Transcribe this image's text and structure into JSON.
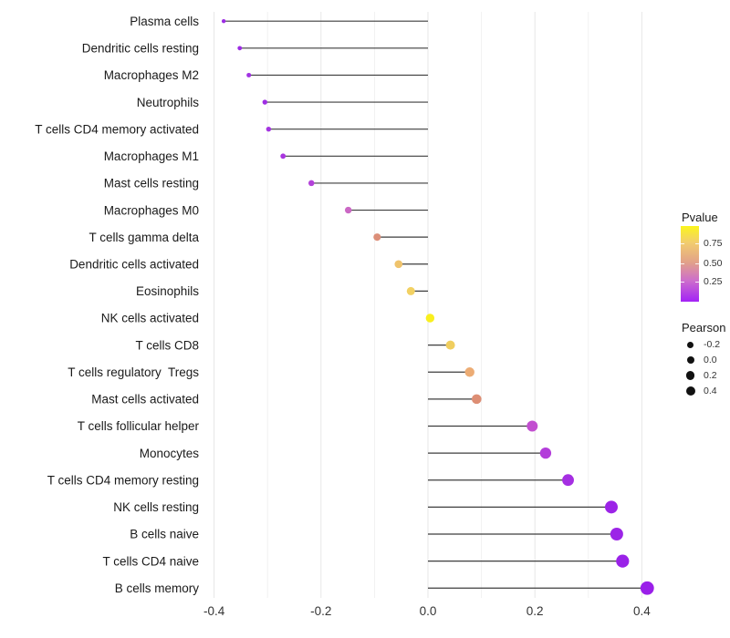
{
  "figure": {
    "background": "#FFFFFF",
    "text_color": "#1a1a1a",
    "axis_text_color": "#333333",
    "stem_color": "#3d3d3d",
    "major_grid_color": "#e7e7e7",
    "minor_grid_color": "#f1f1f1"
  },
  "chart_data": {
    "type": "lollipop",
    "orientation": "horizontal",
    "title": "",
    "xlabel": "",
    "ylabel": "",
    "xlim": [
      -0.41,
      0.46
    ],
    "baseline_x": 0,
    "grid": "vertical-only",
    "x_ticks": [
      -0.4,
      -0.2,
      0,
      0.2,
      0.4
    ],
    "x_tick_labels": [
      "-0.4",
      "-0.2",
      "0.0",
      "0.2",
      "0.4"
    ],
    "x_minor_ticks": [
      -0.3,
      -0.1,
      0.1,
      0.3
    ],
    "legend_position": "right",
    "rows": [
      {
        "label": "Plasma cells",
        "pearson": -0.382,
        "color": "#9C2BE4"
      },
      {
        "label": "Dendritic cells resting",
        "pearson": -0.352,
        "color": "#9C2BE4"
      },
      {
        "label": "Macrophages M2",
        "pearson": -0.335,
        "color": "#A131E3"
      },
      {
        "label": "Neutrophils",
        "pearson": -0.305,
        "color": "#9E2DE3"
      },
      {
        "label": "T cells CD4 memory activated",
        "pearson": -0.298,
        "color": "#A434E1"
      },
      {
        "label": "Macrophages M1",
        "pearson": -0.271,
        "color": "#A936DF"
      },
      {
        "label": "Mast cells resting",
        "pearson": -0.218,
        "color": "#B341D9"
      },
      {
        "label": "Macrophages M0",
        "pearson": -0.149,
        "color": "#CB68C5"
      },
      {
        "label": "T cells gamma delta",
        "pearson": -0.095,
        "color": "#DC8F79"
      },
      {
        "label": "Dendritic cells activated",
        "pearson": -0.055,
        "color": "#EFC36C"
      },
      {
        "label": "Eosinophils",
        "pearson": -0.032,
        "color": "#F2D163"
      },
      {
        "label": "NK cells activated",
        "pearson": 0.004,
        "color": "#F9EF1E"
      },
      {
        "label": "T cells CD8",
        "pearson": 0.042,
        "color": "#F0CE5F"
      },
      {
        "label": "T cells regulatory  Tregs",
        "pearson": 0.078,
        "color": "#ECAC74"
      },
      {
        "label": "Mast cells activated",
        "pearson": 0.091,
        "color": "#DD8E74"
      },
      {
        "label": "T cells follicular helper",
        "pearson": 0.195,
        "color": "#C24FD0"
      },
      {
        "label": "Monocytes",
        "pearson": 0.22,
        "color": "#B33DDA"
      },
      {
        "label": "T cells CD4 memory resting",
        "pearson": 0.262,
        "color": "#A52FE2"
      },
      {
        "label": "NK cells resting",
        "pearson": 0.343,
        "color": "#9C24E7"
      },
      {
        "label": "B cells naive",
        "pearson": 0.353,
        "color": "#9C24E7"
      },
      {
        "label": "T cells CD4 naive",
        "pearson": 0.364,
        "color": "#9A22E8"
      },
      {
        "label": "B cells memory",
        "pearson": 0.41,
        "color": "#9A1FE9"
      }
    ]
  },
  "legend": {
    "pvalue": {
      "title": "Pvalue",
      "tick_labels": [
        "0.75",
        "0.50",
        "0.25"
      ],
      "gradient_top_to_bottom": [
        "#FBF51C",
        "#F2CD6E",
        "#E2A189",
        "#CD6ECB",
        "#A322F6"
      ]
    },
    "pearson": {
      "title": "Pearson",
      "dot_color": "#111111",
      "items": [
        {
          "label": "-0.2",
          "diameter": 7
        },
        {
          "label": "0.0",
          "diameter": 8.4
        },
        {
          "label": "0.2",
          "diameter": 9.4
        },
        {
          "label": "0.4",
          "diameter": 10.4
        }
      ]
    }
  }
}
